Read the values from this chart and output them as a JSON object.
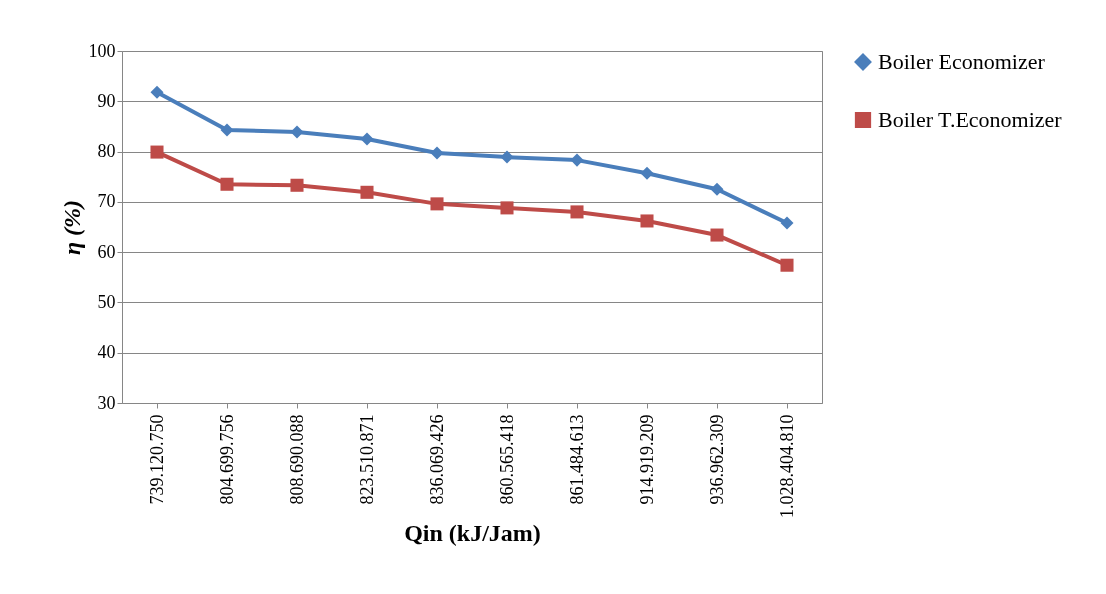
{
  "chart_data": {
    "type": "line",
    "xlabel": "Qin (kJ/Jam)",
    "ylabel": "η (%)",
    "categories": [
      "739.120.750",
      "804.699.756",
      "808.690.088",
      "823.510.871",
      "836.069.426",
      "860.565.418",
      "861.484.613",
      "914.919.209",
      "936.962.309",
      "1.028.404.810"
    ],
    "series": [
      {
        "name": "Boiler Economizer",
        "color": "#4a7ebb",
        "marker": "diamond",
        "values": [
          91.8,
          84.3,
          83.9,
          82.5,
          79.7,
          78.9,
          78.3,
          75.7,
          72.5,
          65.8
        ]
      },
      {
        "name": "Boiler T.Economizer",
        "color": "#be4b48",
        "marker": "square",
        "values": [
          79.9,
          73.5,
          73.3,
          71.9,
          69.6,
          68.8,
          68.0,
          66.2,
          63.4,
          57.4
        ]
      }
    ],
    "ylim": [
      30,
      100
    ],
    "yticks": [
      30,
      40,
      50,
      60,
      70,
      80,
      90,
      100
    ],
    "grid": "y",
    "legend": "right",
    "line_style": "solid"
  }
}
